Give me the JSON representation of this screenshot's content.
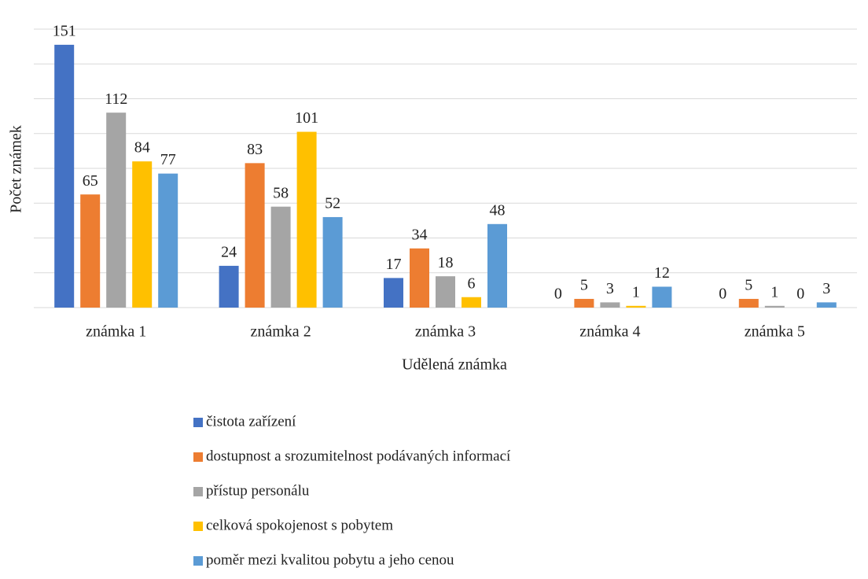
{
  "chart_data": {
    "type": "bar",
    "x_label": "Udělená známka",
    "y_label": "Počet známek",
    "categories": [
      "známka 1",
      "známka 2",
      "známka 3",
      "známka 4",
      "známka 5"
    ],
    "series": [
      {
        "name": "čistota zařízení",
        "color": "#4472c4",
        "values": [
          151,
          24,
          17,
          0,
          0
        ]
      },
      {
        "name": "dostupnost a srozumitelnost podávaných informací",
        "color": "#ed7d31",
        "values": [
          65,
          83,
          34,
          5,
          5
        ]
      },
      {
        "name": "přístup personálu",
        "color": "#a5a5a5",
        "values": [
          112,
          58,
          18,
          3,
          1
        ]
      },
      {
        "name": "celková spokojenost s pobytem",
        "color": "#ffc000",
        "values": [
          84,
          101,
          6,
          1,
          0
        ]
      },
      {
        "name": "poměr mezi kvalitou pobytu a jeho cenou",
        "color": "#5b9bd5",
        "values": [
          77,
          52,
          48,
          12,
          3
        ]
      }
    ],
    "ylim": [
      0,
      160
    ],
    "yticks": [
      0,
      20,
      40,
      60,
      80,
      100,
      120,
      140,
      160
    ],
    "grid": true
  }
}
